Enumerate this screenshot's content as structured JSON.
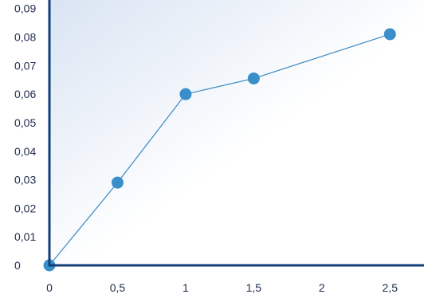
{
  "colors": {
    "axis": "#123f78",
    "series_line": "#3a88c2",
    "series_marker": "#3a8fca",
    "plot_bg_start": "#d9e4f3",
    "plot_bg_end": "#ffffff",
    "tick_text": "#1f2b4d"
  },
  "chart_data": {
    "type": "line",
    "title": "",
    "xlabel": "",
    "ylabel": "",
    "x": [
      0,
      0.5,
      1,
      1.5,
      2,
      2.5
    ],
    "x_tick_labels": [
      "0",
      "0,5",
      "1",
      "1,5",
      "2",
      "2,5"
    ],
    "y_tick_values": [
      0,
      0.01,
      0.02,
      0.03,
      0.04,
      0.05,
      0.06,
      0.07,
      0.08,
      0.09
    ],
    "y_tick_labels": [
      "0",
      "0,01",
      "0,02",
      "0,03",
      "0,04",
      "0,05",
      "0,06",
      "0,07",
      "0,08",
      "0,09"
    ],
    "xlim": [
      0,
      2.75
    ],
    "ylim": [
      0,
      0.093
    ],
    "grid": false,
    "legend": "none",
    "series": [
      {
        "points": [
          {
            "x": 0,
            "y": 0
          },
          {
            "x": 0.5,
            "y": 0.029
          },
          {
            "x": 1,
            "y": 0.06
          },
          {
            "x": 1.5,
            "y": 0.0655
          },
          {
            "x": 2.5,
            "y": 0.081
          }
        ]
      }
    ]
  }
}
